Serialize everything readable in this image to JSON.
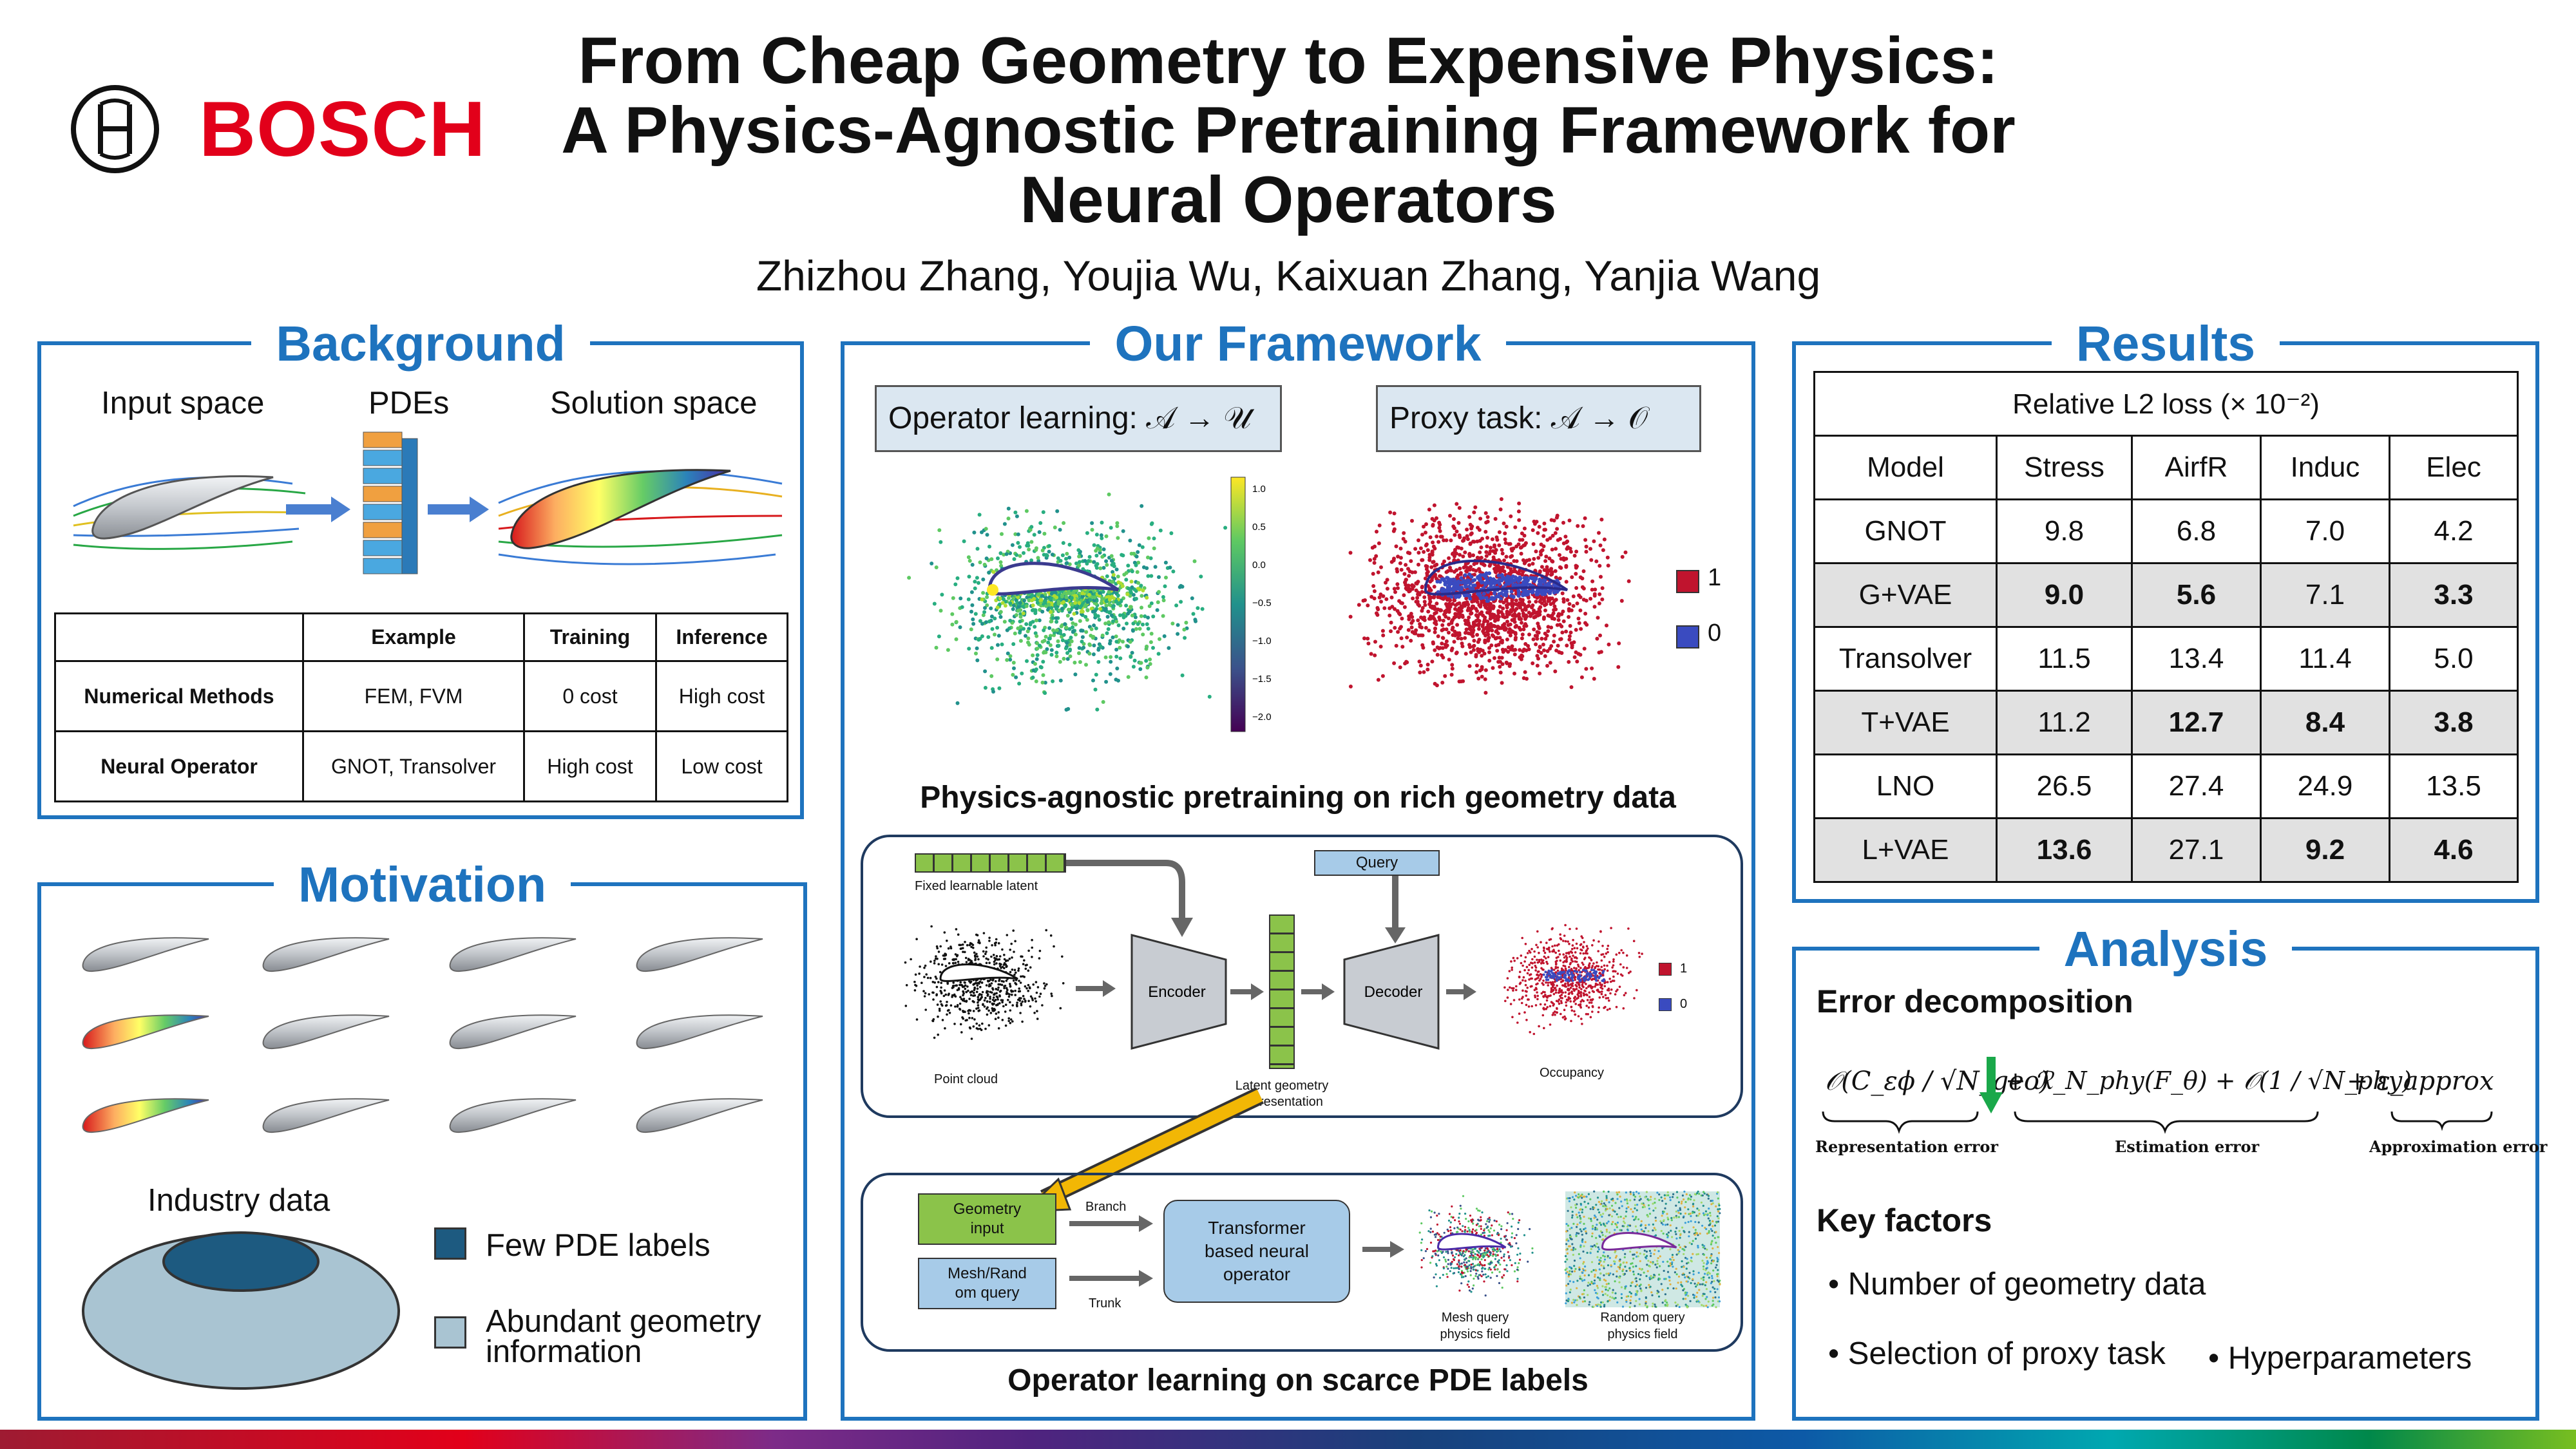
{
  "brand": {
    "name": "BOSCH",
    "color": "#e2001a"
  },
  "title": {
    "line1": "From Cheap Geometry to Expensive Physics:",
    "line2": "A Physics-Agnostic Pretraining Framework for",
    "line3": "Neural Operators"
  },
  "authors": "Zhizhou Zhang, Youjia Wu, Kaixuan Zhang, Yanjia Wang",
  "colors": {
    "accent": "#1e73be",
    "label_blue": "#1d5a80",
    "label_light": "#a9c4d2"
  },
  "background": {
    "heading": "Background",
    "labels": {
      "input": "Input space",
      "pdes": "PDEs",
      "solution": "Solution space"
    },
    "table": {
      "headers": [
        "",
        "Example",
        "Training",
        "Inference"
      ],
      "rows": [
        [
          "Numerical Methods",
          "FEM, FVM",
          "0 cost",
          "High cost"
        ],
        [
          "Neural Operator",
          "GNOT, Transolver",
          "High cost",
          "Low cost"
        ]
      ]
    }
  },
  "motivation": {
    "heading": "Motivation",
    "industry": "Industry data",
    "legend": {
      "few": "Few PDE labels",
      "abundant_1": "Abundant geometry",
      "abundant_2": "information"
    }
  },
  "framework": {
    "heading": "Our Framework",
    "op_box": "Operator learning: 𝒜 → 𝒰",
    "proxy_box": "Proxy task: 𝒜 → 𝒪",
    "colorbar_ticks": [
      "1.0",
      "0.5",
      "0.0",
      "−0.5",
      "−1.0",
      "−1.5",
      "−2.0"
    ],
    "occ_legend": [
      "1",
      "0"
    ],
    "caption1": "Physics-agnostic pretraining on rich geometry data",
    "pretrain": {
      "latent": "Fixed learnable latent",
      "query": "Query",
      "encoder": "Encoder",
      "decoder": "Decoder",
      "point_cloud": "Point cloud",
      "latent_rep_1": "Latent geometry",
      "latent_rep_2": "representation",
      "occupancy": "Occupancy",
      "occ_1": "1",
      "occ_0": "0"
    },
    "finetune": {
      "geometry_input_1": "Geometry",
      "geometry_input_2": "input",
      "mesh_query_1": "Mesh/Rand",
      "mesh_query_2": "om query",
      "branch": "Branch",
      "trunk": "Trunk",
      "transformer_1": "Transformer",
      "transformer_2": "based neural",
      "transformer_3": "operator",
      "mesh_field_1": "Mesh query",
      "mesh_field_2": "physics field",
      "random_field_1": "Random query",
      "random_field_2": "physics field"
    },
    "caption2": "Operator learning on scarce PDE labels"
  },
  "results": {
    "heading": "Results",
    "caption": "Relative L2 loss (× 10⁻²)",
    "headers": [
      "Model",
      "Stress",
      "AirfR",
      "Induc",
      "Elec"
    ],
    "rows": [
      {
        "model": "GNOT",
        "values": [
          "9.8",
          "6.8",
          "7.0",
          "4.2"
        ],
        "bold": [
          false,
          false,
          false,
          false
        ],
        "shaded": false
      },
      {
        "model": "G+VAE",
        "values": [
          "9.0",
          "5.6",
          "7.1",
          "3.3"
        ],
        "bold": [
          true,
          true,
          false,
          true
        ],
        "shaded": true
      },
      {
        "model": "Transolver",
        "values": [
          "11.5",
          "13.4",
          "11.4",
          "5.0"
        ],
        "bold": [
          false,
          false,
          false,
          false
        ],
        "shaded": false
      },
      {
        "model": "T+VAE",
        "values": [
          "11.2",
          "12.7",
          "8.4",
          "3.8"
        ],
        "bold": [
          false,
          true,
          true,
          true
        ],
        "shaded": true
      },
      {
        "model": "LNO",
        "values": [
          "26.5",
          "27.4",
          "24.9",
          "13.5"
        ],
        "bold": [
          false,
          false,
          false,
          false
        ],
        "shaded": false
      },
      {
        "model": "L+VAE",
        "values": [
          "13.6",
          "27.1",
          "9.2",
          "4.6"
        ],
        "bold": [
          true,
          false,
          true,
          true
        ],
        "shaded": true
      }
    ]
  },
  "analysis": {
    "heading": "Analysis",
    "error_title": "Error decomposition",
    "formula": {
      "rep_term": "𝒪(C_εϕ / √N_geo)",
      "est_term": "+ ℛ_N_phy(F_θ) + 𝒪(1 / √N_phy)",
      "approx_term": "+ ε_approx",
      "rep_label": "Representation error",
      "est_label": "Estimation error",
      "approx_label": "Approximation error"
    },
    "key_title": "Key factors",
    "factors": [
      "Number of geometry data",
      "Selection of proxy task",
      "Hyperparameters"
    ]
  }
}
